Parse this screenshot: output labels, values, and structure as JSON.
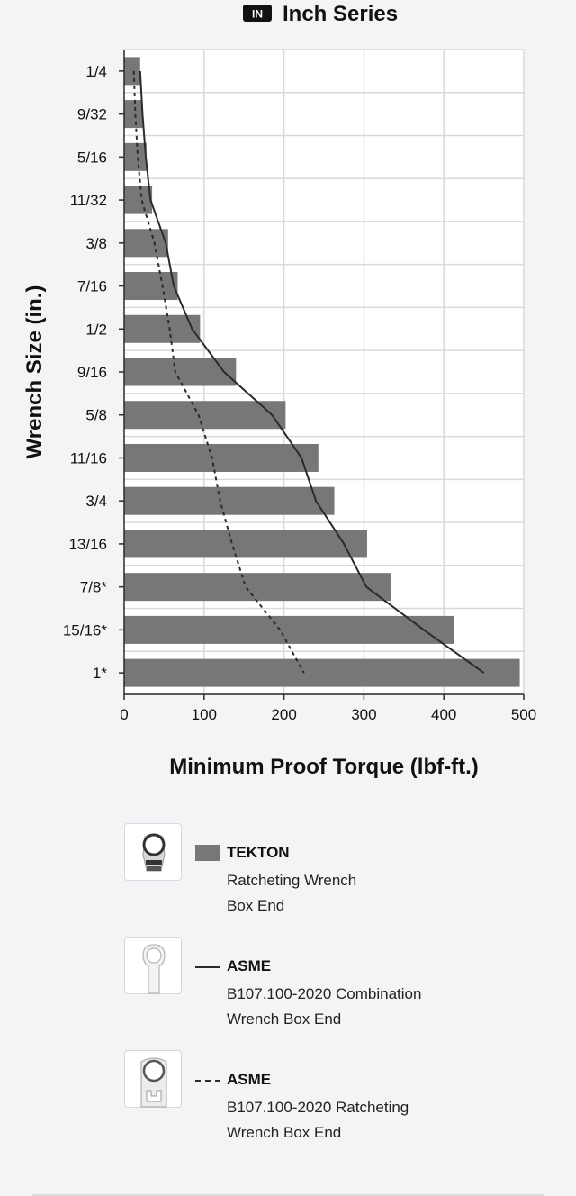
{
  "header": {
    "badge": "IN",
    "title": "Inch Series"
  },
  "chart_data": {
    "type": "bar",
    "orientation": "horizontal",
    "title": "Inch Series",
    "xlabel": "Minimum Proof Torque (lbf-ft.)",
    "ylabel": "Wrench Size (in.)",
    "xlim": [
      0,
      500
    ],
    "x_ticks": [
      "0",
      "100",
      "200",
      "300",
      "400",
      "500"
    ],
    "x_tick_values": [
      0,
      100,
      200,
      300,
      400,
      500
    ],
    "grid": true,
    "categories": [
      "1/4",
      "9/32",
      "5/16",
      "11/32",
      "3/8",
      "7/16",
      "1/2",
      "9/16",
      "5/8",
      "11/16",
      "3/4",
      "13/16",
      "7/8*",
      "15/16*",
      "1*"
    ],
    "series": [
      {
        "name": "TEKTON",
        "type": "bar",
        "color": "#777777",
        "values": [
          20,
          23,
          28,
          35,
          55,
          67,
          95,
          140,
          202,
          243,
          263,
          304,
          334,
          413,
          495
        ]
      },
      {
        "name": "ASME",
        "type": "line",
        "style": "solid",
        "color": "#2b2b2b",
        "values": [
          20,
          23,
          27,
          33,
          52,
          62,
          85,
          125,
          185,
          222,
          240,
          275,
          303,
          375,
          450
        ]
      },
      {
        "name": "ASME",
        "type": "line",
        "style": "dotted",
        "color": "#2b2b2b",
        "values": [
          12,
          14,
          17,
          22,
          38,
          48,
          57,
          64,
          93,
          110,
          120,
          135,
          152,
          195,
          225
        ]
      }
    ]
  },
  "legend": [
    {
      "icon": "tekton-ratcheting-wrench-icon",
      "swatch": "bar",
      "name": "TEKTON",
      "line1": "Ratcheting Wrench",
      "line2": "Box End"
    },
    {
      "icon": "combination-wrench-icon",
      "swatch": "solid-line",
      "name": "ASME",
      "line1": "B107.100-2020 Combination",
      "line2": "Wrench Box End"
    },
    {
      "icon": "ratcheting-wrench-icon",
      "swatch": "dotted-line",
      "name": "ASME",
      "line1": "B107.100-2020 Ratcheting",
      "line2": "Wrench Box End"
    }
  ]
}
